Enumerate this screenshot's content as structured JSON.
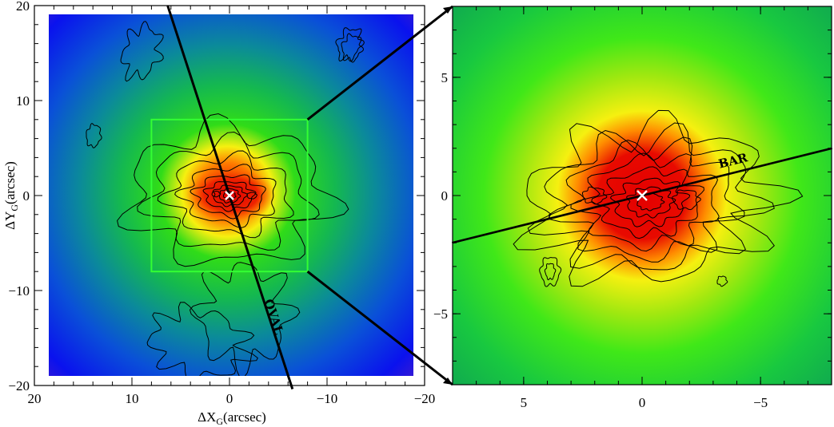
{
  "chart_data": [
    {
      "type": "heatmap",
      "panel": "left",
      "x_axis": {
        "label_main": "ΔX",
        "label_sub": "G",
        "label_unit": "(arcsec)",
        "range": [
          20,
          -20
        ],
        "ticks": [
          20,
          10,
          0,
          -10,
          -20
        ],
        "tick_labels": [
          "20",
          "10",
          "0",
          "−10",
          "−20"
        ]
      },
      "y_axis": {
        "label_main": "ΔY",
        "label_sub": "G",
        "label_unit": "(arcsec)",
        "range": [
          -20,
          20
        ],
        "ticks": [
          -20,
          -10,
          0,
          10,
          20
        ],
        "tick_labels": [
          "−20",
          "−10",
          "0",
          "10",
          "20"
        ]
      },
      "image_extent": {
        "x": [
          19.2,
          -19.2
        ],
        "y": [
          -19.2,
          19.2
        ]
      },
      "colormap": [
        "#5a1fc0",
        "#0a10ee",
        "#0b5ad0",
        "#0fa066",
        "#16d818",
        "#f0f010",
        "#ff9a00",
        "#e80000"
      ],
      "center_marker": {
        "x": 0,
        "y": 0,
        "symbol": "×"
      },
      "zoom_box": {
        "x": [
          8,
          -8
        ],
        "y": [
          -8,
          8
        ],
        "color": "#33ff33"
      },
      "annotations": [
        {
          "text": "OVAL",
          "type": "line",
          "through": [
            0,
            0
          ],
          "position_angle_deg": -18
        }
      ],
      "contours": "CO intensity contours (black)"
    },
    {
      "type": "heatmap",
      "panel": "right",
      "x_axis": {
        "range": [
          8,
          -8
        ],
        "ticks": [
          5,
          0,
          -5
        ],
        "tick_labels": [
          "5",
          "0",
          "−5"
        ]
      },
      "y_axis": {
        "range": [
          -8,
          8
        ],
        "ticks": [
          -5,
          0,
          5
        ],
        "tick_labels": [
          "−5",
          "0",
          "5"
        ]
      },
      "center_marker": {
        "x": 0,
        "y": 0,
        "symbol": "×"
      },
      "annotations": [
        {
          "text": "BAR",
          "type": "line",
          "through": [
            0,
            0
          ],
          "position_angle_deg": 76
        }
      ],
      "contours": "CO intensity contours (black)"
    }
  ]
}
